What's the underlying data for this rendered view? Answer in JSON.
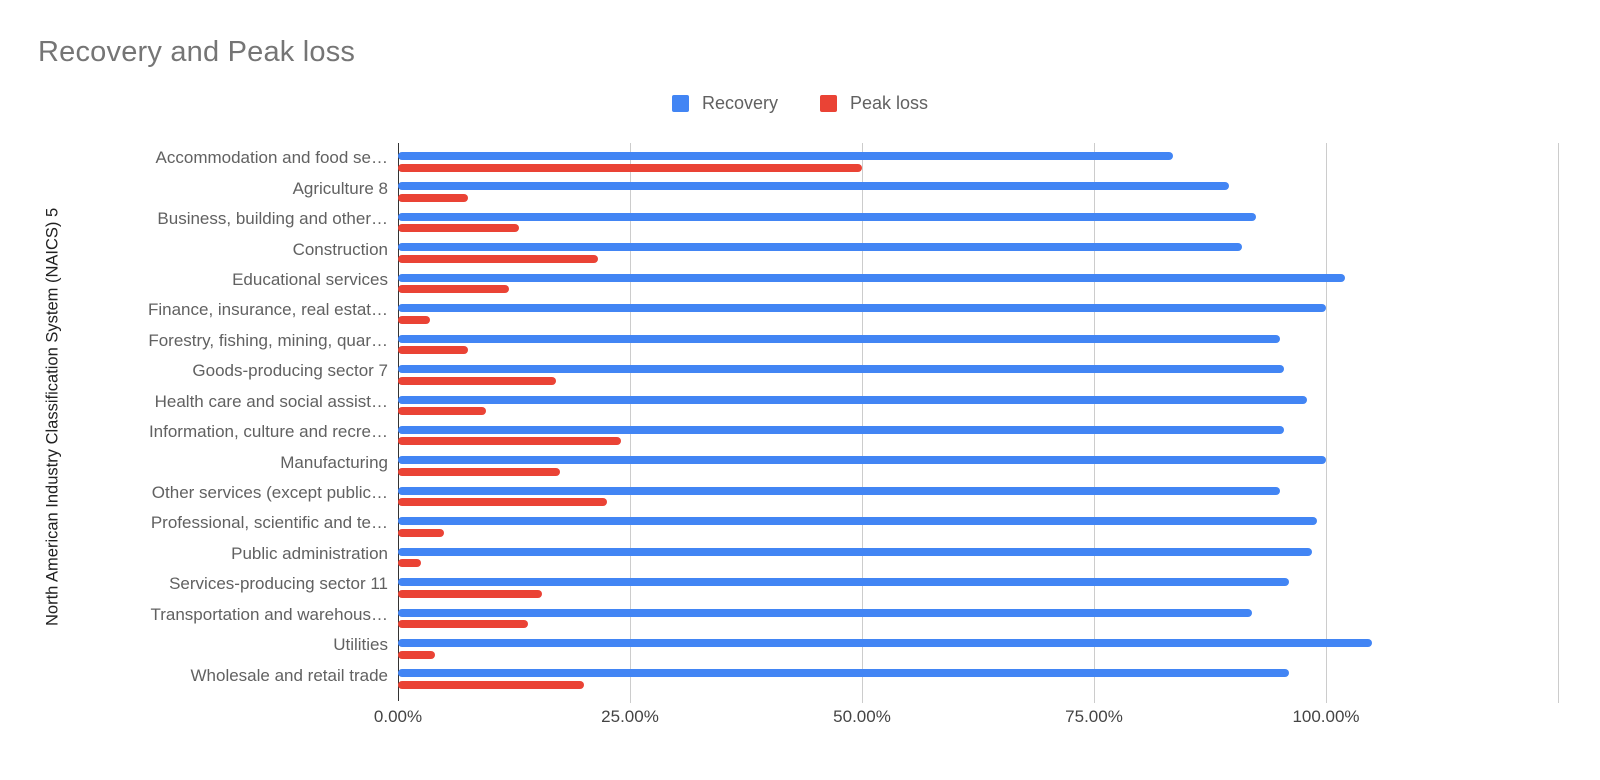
{
  "title": "Recovery and Peak loss",
  "legend": [
    {
      "label": "Recovery",
      "color": "#4285f4"
    },
    {
      "label": "Peak loss",
      "color": "#ea4335"
    }
  ],
  "colors": {
    "recovery": "#4285f4",
    "peak_loss": "#ea4335",
    "gridline": "#cccccc",
    "axis_line": "#333333",
    "title_text": "#757575",
    "category_label_text": "#616161",
    "tick_label_text": "#444444"
  },
  "chart_data": {
    "type": "bar",
    "orientation": "horizontal",
    "title": "Recovery and Peak loss",
    "xlabel": "",
    "ylabel": "North American Industry Classification System (NAICS) 5",
    "grid": true,
    "legend_position": "top-center",
    "xlim": [
      0,
      125
    ],
    "x_ticks": [
      {
        "value": 0,
        "label": "0.00%"
      },
      {
        "value": 25,
        "label": "25.00%"
      },
      {
        "value": 50,
        "label": "50.00%"
      },
      {
        "value": 75,
        "label": "75.00%"
      },
      {
        "value": 100,
        "label": "100.00%"
      },
      {
        "value": 125,
        "label": ""
      }
    ],
    "categories": [
      "Accommodation and food se…",
      "Agriculture 8",
      "Business, building and other…",
      "Construction",
      "Educational services",
      "Finance, insurance, real estat…",
      "Forestry, fishing, mining, quar…",
      "Goods-producing sector 7",
      "Health care and social assist…",
      "Information, culture and recre…",
      "Manufacturing",
      "Other services (except public…",
      "Professional, scientific and te…",
      "Public administration",
      "Services-producing sector 11",
      "Transportation and warehous…",
      "Utilities",
      "Wholesale and retail trade"
    ],
    "series": [
      {
        "name": "Recovery",
        "color": "#4285f4",
        "values": [
          83.5,
          89.5,
          92.5,
          91,
          102,
          100,
          95,
          95.5,
          98,
          95.5,
          100,
          95,
          99,
          98.5,
          96,
          92,
          105,
          96
        ]
      },
      {
        "name": "Peak loss",
        "color": "#ea4335",
        "values": [
          50,
          7.5,
          13,
          21.5,
          12,
          3.5,
          7.5,
          17,
          9.5,
          24,
          17.5,
          22.5,
          5,
          2.5,
          15.5,
          14,
          4,
          20
        ]
      }
    ]
  }
}
